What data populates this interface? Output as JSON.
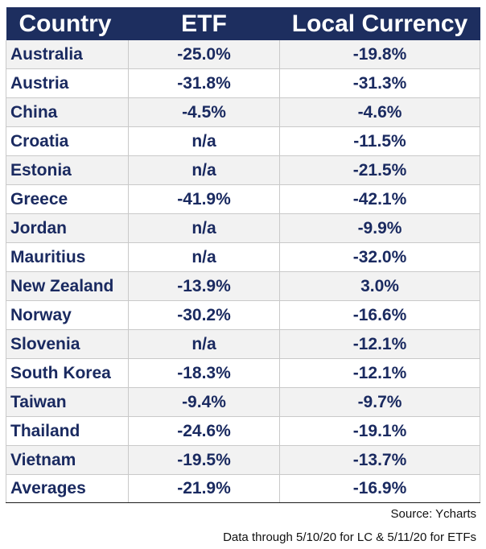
{
  "colors": {
    "header_bg": "#1d2e5f",
    "header_text": "#ffffff",
    "row_alt_bg": "#f2f2f2",
    "row_bg": "#ffffff",
    "cell_text": "#1a2a60",
    "border": "#c9c9c9"
  },
  "table": {
    "headers": [
      "Country",
      "ETF",
      "Local Currency"
    ],
    "rows": [
      [
        "Australia",
        "-25.0%",
        "-19.8%"
      ],
      [
        "Austria",
        "-31.8%",
        "-31.3%"
      ],
      [
        "China",
        "-4.5%",
        "-4.6%"
      ],
      [
        "Croatia",
        "n/a",
        "-11.5%"
      ],
      [
        "Estonia",
        "n/a",
        "-21.5%"
      ],
      [
        "Greece",
        "-41.9%",
        "-42.1%"
      ],
      [
        "Jordan",
        "n/a",
        "-9.9%"
      ],
      [
        "Mauritius",
        "n/a",
        "-32.0%"
      ],
      [
        "New Zealand",
        "-13.9%",
        "3.0%"
      ],
      [
        "Norway",
        "-30.2%",
        "-16.6%"
      ],
      [
        "Slovenia",
        "n/a",
        "-12.1%"
      ],
      [
        "South Korea",
        "-18.3%",
        "-12.1%"
      ],
      [
        "Taiwan",
        "-9.4%",
        "-9.7%"
      ],
      [
        "Thailand",
        "-24.6%",
        "-19.1%"
      ],
      [
        "Vietnam",
        "-19.5%",
        "-13.7%"
      ]
    ],
    "averages": [
      "Averages",
      "-21.9%",
      "-16.9%"
    ]
  },
  "footer": {
    "source": "Source: Ycharts",
    "note": "Data through 5/10/20 for LC & 5/11/20 for ETFs"
  }
}
